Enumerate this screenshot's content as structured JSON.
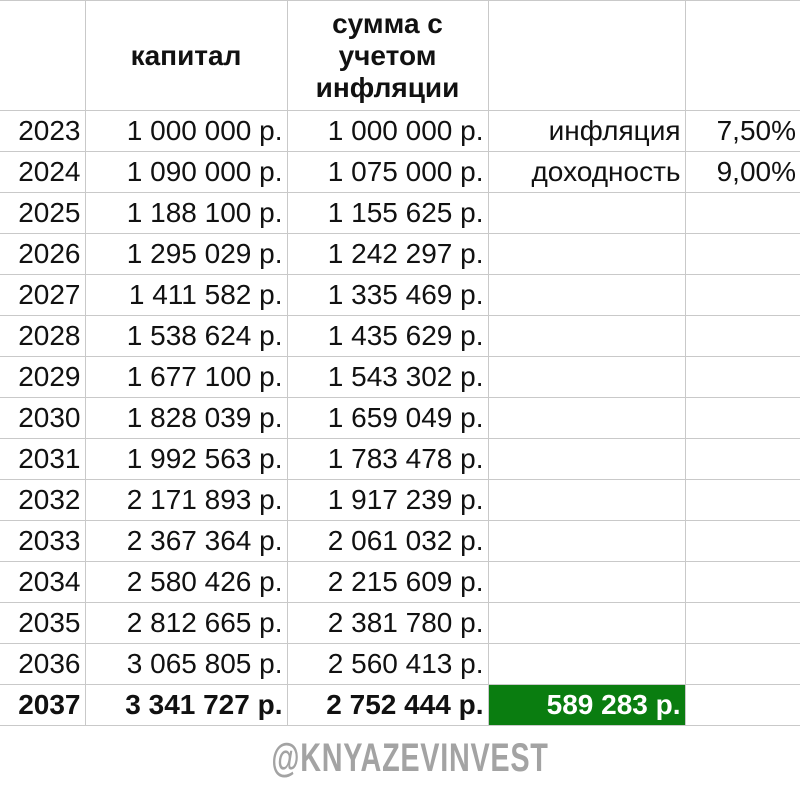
{
  "headers": {
    "year": "",
    "capital": "капитал",
    "inflation_adjusted": [
      "сумма с",
      "учетом",
      "инфляции"
    ],
    "param": "",
    "value": ""
  },
  "params": [
    {
      "label": "инфляция",
      "value": "7,50%"
    },
    {
      "label": "доходность",
      "value": "9,00%"
    }
  ],
  "rows": [
    {
      "year": "2023",
      "capital": "1 000 000 р.",
      "adjusted": "1 000 000 р."
    },
    {
      "year": "2024",
      "capital": "1 090 000 р.",
      "adjusted": "1 075 000 р."
    },
    {
      "year": "2025",
      "capital": "1 188 100 р.",
      "adjusted": "1 155 625 р."
    },
    {
      "year": "2026",
      "capital": "1 295 029 р.",
      "adjusted": "1 242 297 р."
    },
    {
      "year": "2027",
      "capital": "1 411 582 р.",
      "adjusted": "1 335 469 р."
    },
    {
      "year": "2028",
      "capital": "1 538 624 р.",
      "adjusted": "1 435 629 р."
    },
    {
      "year": "2029",
      "capital": "1 677 100 р.",
      "adjusted": "1 543 302 р."
    },
    {
      "year": "2030",
      "capital": "1 828 039 р.",
      "adjusted": "1 659 049 р."
    },
    {
      "year": "2031",
      "capital": "1 992 563 р.",
      "adjusted": "1 783 478 р."
    },
    {
      "year": "2032",
      "capital": "2 171 893 р.",
      "adjusted": "1 917 239 р."
    },
    {
      "year": "2033",
      "capital": "2 367 364 р.",
      "adjusted": "2 061 032 р."
    },
    {
      "year": "2034",
      "capital": "2 580 426 р.",
      "adjusted": "2 215 609 р."
    },
    {
      "year": "2035",
      "capital": "2 812 665 р.",
      "adjusted": "2 381 780 р."
    },
    {
      "year": "2036",
      "capital": "3 065 805 р.",
      "adjusted": "2 560 413 р."
    }
  ],
  "total": {
    "year": "2037",
    "capital": "3 341 727 р.",
    "adjusted": "2 752 444 р.",
    "difference": "589 283 р."
  },
  "colors": {
    "highlight": "#0a7d10",
    "grid": "#c9c9c9",
    "watermark": "#a3a3a3"
  },
  "watermark": "@KNYAZEVINVEST"
}
